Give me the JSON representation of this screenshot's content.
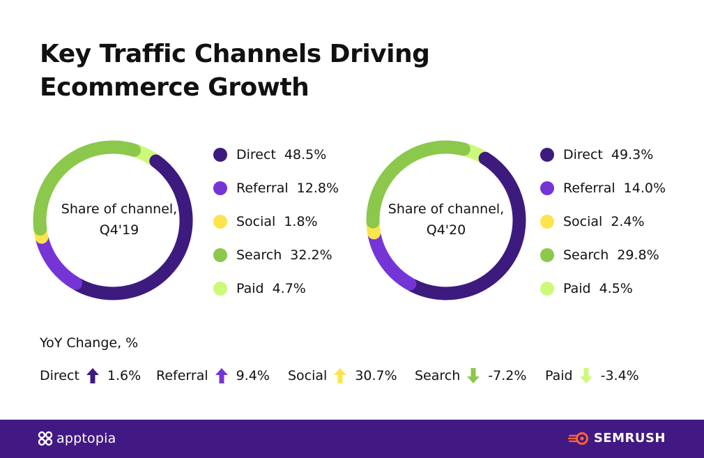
{
  "title_line1": "Key Traffic Channels Driving",
  "title_line2": "Ecommerce Growth",
  "chart_data": [
    {
      "type": "pie",
      "center_label": [
        "Share of channel,",
        "Q4'19"
      ],
      "categories": [
        "Direct",
        "Referral",
        "Social",
        "Search",
        "Paid"
      ],
      "values": [
        48.5,
        12.8,
        1.8,
        32.2,
        4.7
      ],
      "labels": [
        "48.5%",
        "12.8%",
        "1.8%",
        "32.2%",
        "4.7%"
      ]
    },
    {
      "type": "pie",
      "center_label": [
        "Share of channel,",
        "Q4'20"
      ],
      "categories": [
        "Direct",
        "Referral",
        "Social",
        "Search",
        "Paid"
      ],
      "values": [
        49.3,
        14.0,
        2.4,
        29.8,
        4.5
      ],
      "labels": [
        "49.3%",
        "14.0%",
        "2.4%",
        "29.8%",
        "4.5%"
      ]
    }
  ],
  "colors": {
    "Direct": "#3d1a7e",
    "Referral": "#7535d6",
    "Social": "#fde44c",
    "Search": "#8bc84b",
    "Paid": "#cdf97a",
    "footer": "#421983"
  },
  "yoy": {
    "title": "YoY Change, %",
    "items": [
      {
        "label": "Direct",
        "value": "1.6%",
        "direction": "up",
        "color": "#3d1a7e"
      },
      {
        "label": "Referral",
        "value": "9.4%",
        "direction": "up",
        "color": "#7535d6"
      },
      {
        "label": "Social",
        "value": "30.7%",
        "direction": "up",
        "color": "#fde44c"
      },
      {
        "label": "Search",
        "value": "-7.2%",
        "direction": "down",
        "color": "#8bc84b"
      },
      {
        "label": "Paid",
        "value": "-3.4%",
        "direction": "down",
        "color": "#cdf97a"
      }
    ]
  },
  "footer": {
    "left_brand": "apptopia",
    "right_brand": "SEMRUSH"
  }
}
